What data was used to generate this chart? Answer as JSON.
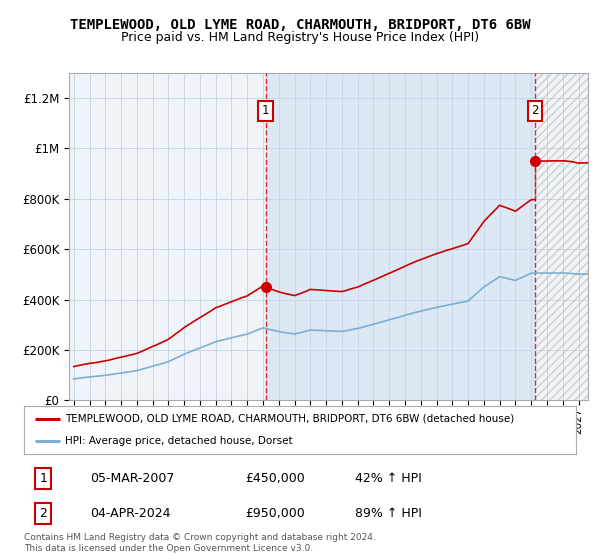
{
  "title": "TEMPLEWOOD, OLD LYME ROAD, CHARMOUTH, BRIDPORT, DT6 6BW",
  "subtitle": "Price paid vs. HM Land Registry's House Price Index (HPI)",
  "ylabel_ticks": [
    "£0",
    "£200K",
    "£400K",
    "£600K",
    "£800K",
    "£1M",
    "£1.2M"
  ],
  "ylim": [
    0,
    1300000
  ],
  "yticks": [
    0,
    200000,
    400000,
    600000,
    800000,
    1000000,
    1200000
  ],
  "purchase1_year": 2007.17,
  "purchase1_price": 450000,
  "purchase2_year": 2024.25,
  "purchase2_price": 950000,
  "red_line_color": "#cc0000",
  "blue_line_color": "#7bafd4",
  "blue_fill_color": "#dce9f5",
  "legend_label_red": "TEMPLEWOOD, OLD LYME ROAD, CHARMOUTH, BRIDPORT, DT6 6BW (detached house)",
  "legend_label_blue": "HPI: Average price, detached house, Dorset",
  "row1_date": "05-MAR-2007",
  "row1_price": "£450,000",
  "row1_hpi": "42% ↑ HPI",
  "row2_date": "04-APR-2024",
  "row2_price": "£950,000",
  "row2_hpi": "89% ↑ HPI",
  "footnote": "Contains HM Land Registry data © Crown copyright and database right 2024.\nThis data is licensed under the Open Government Licence v3.0.",
  "background_color": "#ffffff",
  "plot_bg_color": "#f0f4f8",
  "grid_color": "#c8d8e8",
  "hatch_color": "#aaaaaa",
  "box_color": "#cc0000"
}
